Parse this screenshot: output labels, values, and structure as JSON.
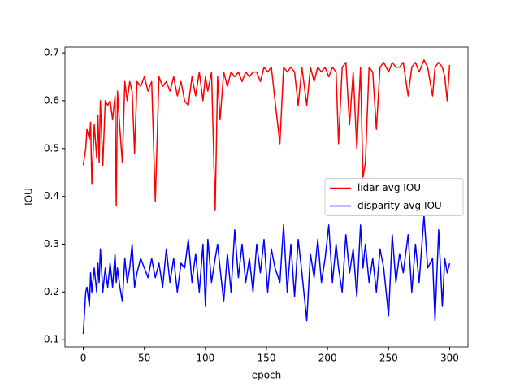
{
  "chart_data": {
    "type": "line",
    "x_label": "epoch",
    "y_label": "IOU",
    "x": [
      0,
      2,
      3,
      5,
      6,
      7,
      9,
      11,
      12,
      13,
      14,
      16,
      18,
      20,
      22,
      24,
      26,
      27,
      28,
      30,
      32,
      34,
      36,
      38,
      40,
      42,
      44,
      47,
      50,
      53,
      56,
      59,
      62,
      65,
      68,
      71,
      74,
      77,
      80,
      83,
      86,
      89,
      92,
      95,
      98,
      100,
      102,
      105,
      108,
      110,
      112,
      115,
      118,
      121,
      124,
      127,
      130,
      133,
      136,
      139,
      142,
      145,
      148,
      151,
      154,
      157,
      161,
      164,
      167,
      170,
      173,
      176,
      179,
      183,
      186,
      189,
      192,
      195,
      198,
      201,
      204,
      207,
      209,
      212,
      215,
      218,
      221,
      224,
      227,
      229,
      231,
      234,
      237,
      240,
      243,
      246,
      250,
      253,
      256,
      259,
      262,
      266,
      269,
      272,
      275,
      279,
      282,
      286,
      288,
      291,
      294,
      296,
      298,
      300
    ],
    "series": [
      {
        "name": "lidar avg IOU",
        "color": "#ff0000",
        "values": [
          0.465,
          0.5,
          0.54,
          0.52,
          0.555,
          0.425,
          0.55,
          0.48,
          0.57,
          0.47,
          0.6,
          0.465,
          0.6,
          0.59,
          0.6,
          0.56,
          0.61,
          0.38,
          0.62,
          0.54,
          0.47,
          0.64,
          0.6,
          0.64,
          0.62,
          0.49,
          0.64,
          0.63,
          0.65,
          0.62,
          0.64,
          0.39,
          0.65,
          0.63,
          0.64,
          0.62,
          0.65,
          0.61,
          0.64,
          0.6,
          0.59,
          0.65,
          0.61,
          0.66,
          0.6,
          0.65,
          0.62,
          0.66,
          0.37,
          0.65,
          0.56,
          0.66,
          0.63,
          0.66,
          0.65,
          0.66,
          0.64,
          0.66,
          0.65,
          0.66,
          0.66,
          0.64,
          0.67,
          0.66,
          0.67,
          0.6,
          0.51,
          0.67,
          0.66,
          0.67,
          0.66,
          0.59,
          0.67,
          0.59,
          0.67,
          0.64,
          0.67,
          0.66,
          0.67,
          0.65,
          0.67,
          0.66,
          0.51,
          0.67,
          0.68,
          0.55,
          0.66,
          0.5,
          0.67,
          0.44,
          0.47,
          0.67,
          0.66,
          0.54,
          0.67,
          0.68,
          0.66,
          0.68,
          0.67,
          0.67,
          0.68,
          0.61,
          0.67,
          0.68,
          0.66,
          0.685,
          0.67,
          0.61,
          0.67,
          0.68,
          0.67,
          0.65,
          0.6,
          0.675
        ]
      },
      {
        "name": "disparity avg IOU",
        "color": "#0000ff",
        "values": [
          0.112,
          0.2,
          0.21,
          0.17,
          0.24,
          0.2,
          0.25,
          0.2,
          0.26,
          0.22,
          0.29,
          0.2,
          0.25,
          0.21,
          0.26,
          0.21,
          0.28,
          0.22,
          0.25,
          0.21,
          0.18,
          0.27,
          0.22,
          0.25,
          0.3,
          0.21,
          0.24,
          0.27,
          0.25,
          0.23,
          0.27,
          0.23,
          0.26,
          0.21,
          0.29,
          0.22,
          0.27,
          0.2,
          0.26,
          0.25,
          0.31,
          0.22,
          0.28,
          0.2,
          0.3,
          0.17,
          0.31,
          0.22,
          0.27,
          0.3,
          0.25,
          0.18,
          0.28,
          0.2,
          0.33,
          0.23,
          0.3,
          0.22,
          0.27,
          0.2,
          0.3,
          0.24,
          0.31,
          0.2,
          0.29,
          0.25,
          0.22,
          0.34,
          0.2,
          0.3,
          0.19,
          0.31,
          0.24,
          0.14,
          0.28,
          0.23,
          0.31,
          0.22,
          0.27,
          0.34,
          0.22,
          0.3,
          0.25,
          0.2,
          0.32,
          0.24,
          0.29,
          0.19,
          0.34,
          0.25,
          0.3,
          0.22,
          0.27,
          0.2,
          0.29,
          0.25,
          0.15,
          0.32,
          0.22,
          0.28,
          0.24,
          0.32,
          0.2,
          0.3,
          0.22,
          0.36,
          0.25,
          0.27,
          0.14,
          0.33,
          0.17,
          0.27,
          0.24,
          0.26
        ]
      }
    ],
    "xlim": [
      -15,
      315
    ],
    "xticks": [
      0,
      50,
      100,
      150,
      200,
      250,
      300
    ],
    "ylim": [
      0.085,
      0.712
    ],
    "yticks": [
      0.1,
      0.2,
      0.3,
      0.4,
      0.5,
      0.6,
      0.7
    ],
    "grid": false,
    "legend": "center right"
  }
}
